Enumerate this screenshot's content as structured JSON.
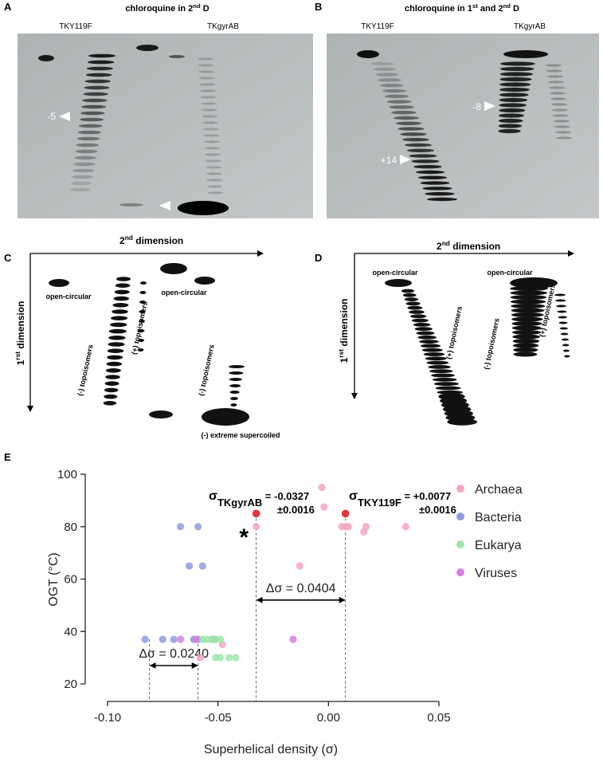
{
  "figure": {
    "A": {
      "letter": "A",
      "title": [
        "chloroquine in 2",
        "nd",
        " D"
      ],
      "lanes": [
        "TKY119F",
        "TKgyrAB"
      ],
      "markers": [
        "-5"
      ]
    },
    "B": {
      "letter": "B",
      "title": [
        "chloroquine in 1",
        "st",
        " and 2",
        "nd",
        " D"
      ],
      "lanes": [
        "TKY119F",
        "TKgyrAB"
      ],
      "markers": [
        "-8",
        "+14"
      ]
    },
    "C": {
      "letter": "C",
      "x_axis": [
        "2",
        "nd",
        " dimension"
      ],
      "y_axis": [
        "1",
        "rst",
        " dimension"
      ],
      "labels": [
        "open-circular",
        "open-circular",
        "(-) topoisomers",
        "(+) topoisomers",
        "(-) topoisomers",
        "(-) extreme supercoiled"
      ]
    },
    "D": {
      "letter": "D",
      "x_axis": [
        "2",
        "nd",
        " dimension"
      ],
      "y_axis": [
        "1",
        "rst",
        " dimension"
      ],
      "labels": [
        "open-circular",
        "open-circular",
        "(+) topoisomers",
        "(-) topoisomers",
        "(+) topoisomers"
      ]
    },
    "E": {
      "letter": "E"
    }
  },
  "chart_data": {
    "type": "scatter",
    "xlabel": "Superhelical density (σ)",
    "ylabel": "OGT (°C)",
    "xlim": [
      -0.1,
      0.05
    ],
    "xticks": [
      {
        "value": -0.1,
        "label": "-0.10"
      },
      {
        "value": -0.05,
        "label": "-0.05"
      },
      {
        "value": 0,
        "label": "0.00"
      },
      {
        "value": 0.05,
        "label": "0.05"
      }
    ],
    "ylim": [
      20,
      100
    ],
    "yticks": [
      20,
      40,
      60,
      80,
      100
    ],
    "series": [
      {
        "name": "Archaea",
        "color": "#f5a7c0",
        "x": [
          -0.003,
          -0.002,
          0.006,
          0.008,
          0.009,
          0.016,
          0.017,
          0.035,
          -0.013,
          -0.058,
          -0.048,
          -0.0327
        ],
        "y": [
          95,
          87.5,
          80,
          80,
          80,
          78,
          80,
          80,
          65,
          30,
          35,
          80
        ]
      },
      {
        "name": "Bacteria",
        "color": "#8f9be0",
        "x": [
          -0.067,
          -0.059,
          -0.063,
          -0.057,
          -0.083,
          -0.075,
          -0.07,
          -0.061,
          -0.059,
          -0.052
        ],
        "y": [
          80,
          80,
          65,
          65,
          37,
          37,
          37,
          37,
          37,
          37
        ]
      },
      {
        "name": "Eukarya",
        "color": "#9ee8a8",
        "x": [
          -0.057,
          -0.055,
          -0.053,
          -0.051,
          -0.049,
          -0.051,
          -0.049,
          -0.045,
          -0.042
        ],
        "y": [
          37,
          37,
          37,
          37,
          37,
          30,
          30,
          30,
          30
        ]
      },
      {
        "name": "Viruses",
        "color": "#d77fe0",
        "x": [
          -0.067,
          -0.06,
          -0.016
        ],
        "y": [
          37,
          37,
          37
        ]
      }
    ],
    "highlight": {
      "color": "#e8333b",
      "x": [
        -0.0327,
        0.0077
      ],
      "y": [
        85,
        85
      ]
    },
    "annotations": [
      {
        "parts": [
          "σ",
          "TKgyrAB",
          " = -0.0327"
        ],
        "error": "±0.0016"
      },
      {
        "parts": [
          "σ",
          "TKY119F",
          " = +0.0077"
        ],
        "error": "±0.0016"
      }
    ],
    "star": "*",
    "brackets": [
      {
        "x": [
          -0.0327,
          0.0077
        ],
        "from_y": [
          85,
          85
        ],
        "y": 52,
        "label": "Δσ = 0.0404"
      },
      {
        "x": [
          -0.081,
          -0.059
        ],
        "from_y": [
          37,
          37
        ],
        "y": 27,
        "label": "Δσ = 0.0240"
      }
    ]
  }
}
